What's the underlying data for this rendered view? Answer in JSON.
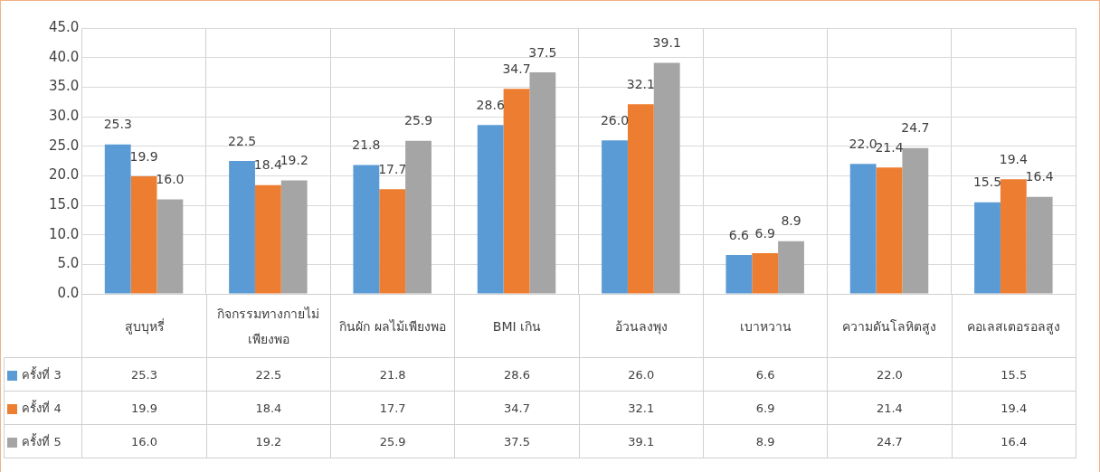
{
  "chart_data": {
    "type": "bar",
    "categories": [
      "สูบบุหรี่",
      "กิจกรรมทางกายไม่เพียงพอ",
      "กินผัก ผลไม้เพียงพอ",
      "BMI เกิน",
      "อ้วนลงพุง",
      "เบาหวาน",
      "ความดันโลหิตสูง",
      "คอเลสเตอรอลสูง"
    ],
    "series": [
      {
        "name": "ครั้งที่ 3",
        "color": "#5b9bd5",
        "values": [
          25.3,
          22.5,
          21.8,
          28.6,
          26.0,
          6.6,
          22.0,
          15.5
        ],
        "value_labels": [
          "25.3",
          "22.5",
          "21.8",
          "28.6",
          "26.0",
          "6.6",
          "22.0",
          "15.5"
        ]
      },
      {
        "name": "ครั้งที่ 4",
        "color": "#ed7d31",
        "values": [
          19.9,
          18.4,
          17.7,
          34.7,
          32.1,
          6.9,
          21.4,
          19.4
        ],
        "value_labels": [
          "19.9",
          "18.4",
          "17.7",
          "34.7",
          "32.1",
          "6.9",
          "21.4",
          "19.4"
        ]
      },
      {
        "name": "ครั้งที่ 5",
        "color": "#a5a5a5",
        "values": [
          16.0,
          19.2,
          25.9,
          37.5,
          39.1,
          8.9,
          24.7,
          16.4
        ],
        "value_labels": [
          "16.0",
          "19.2",
          "25.9",
          "37.5",
          "39.1",
          "8.9",
          "24.7",
          "16.4"
        ]
      }
    ],
    "ylim": [
      0,
      45
    ],
    "yticks": [
      {
        "value": 0,
        "label": "0.0"
      },
      {
        "value": 5,
        "label": "5.0"
      },
      {
        "value": 10,
        "label": "10.0"
      },
      {
        "value": 15,
        "label": "15.0"
      },
      {
        "value": 20,
        "label": "20.0"
      },
      {
        "value": 25,
        "label": "25.0"
      },
      {
        "value": 30,
        "label": "30.0"
      },
      {
        "value": 35,
        "label": "35.0"
      },
      {
        "value": 40,
        "label": "40.0"
      },
      {
        "value": 45,
        "label": "45.0"
      }
    ],
    "grid": true,
    "legend": "bottom"
  }
}
